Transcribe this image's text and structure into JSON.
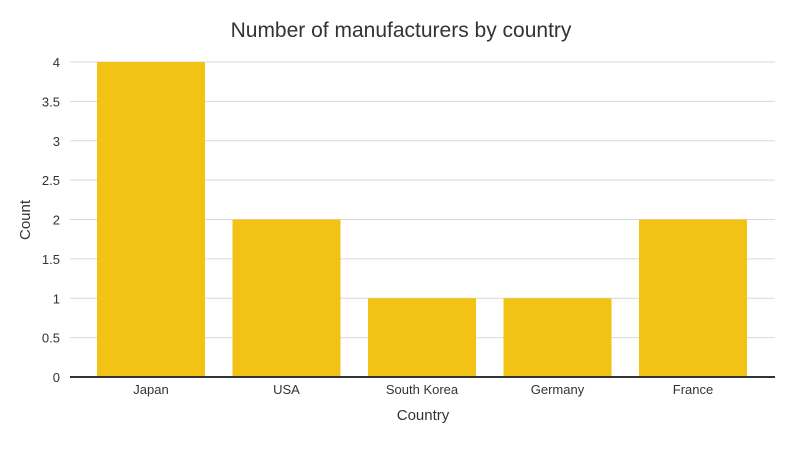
{
  "chart_data": {
    "type": "bar",
    "title": "Number of manufacturers by country",
    "xlabel": "Country",
    "ylabel": "Count",
    "categories": [
      "Japan",
      "USA",
      "South Korea",
      "Germany",
      "France"
    ],
    "values": [
      4,
      2,
      1,
      1,
      2
    ],
    "ylim": [
      0,
      4
    ],
    "yticks": [
      0,
      0.5,
      1,
      1.5,
      2,
      2.5,
      3,
      3.5,
      4
    ],
    "ytick_labels": [
      "0",
      "0.5",
      "1",
      "1.5",
      "2",
      "2.5",
      "3",
      "3.5",
      "4"
    ],
    "grid": true,
    "bar_color": "#f2c314"
  }
}
